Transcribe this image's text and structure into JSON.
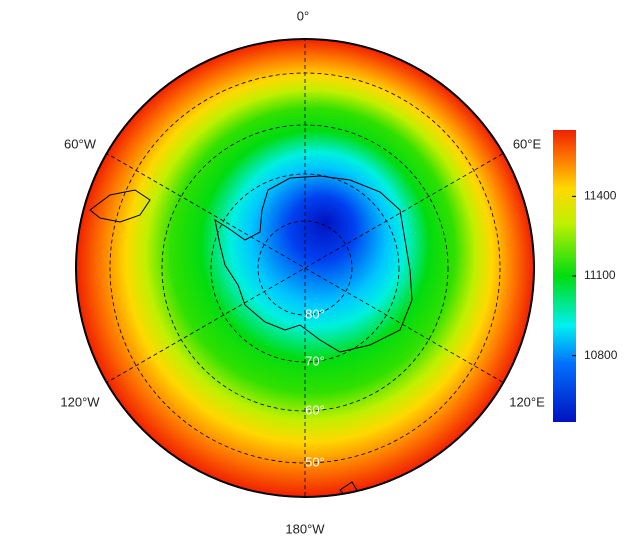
{
  "map": {
    "longitude_labels": [
      "0°",
      "60°E",
      "120°E",
      "180°W",
      "120°W",
      "60°W"
    ],
    "latitude_labels": [
      "80°",
      "70°",
      "60°",
      "50°"
    ],
    "colorbar": {
      "lim": [
        10550,
        11650
      ],
      "ticks": [
        10800,
        11100,
        11400
      ]
    }
  }
}
